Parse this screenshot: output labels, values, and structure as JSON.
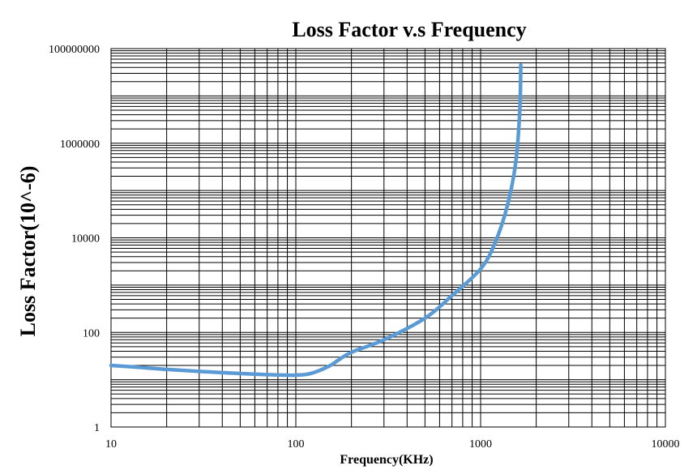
{
  "chart_data": {
    "type": "line",
    "title": "Loss Factor v.s Frequency",
    "xlabel": "Frequency(KHz)",
    "ylabel": "Loss Factor(10^-6)",
    "x_scale": "log",
    "y_scale": "log",
    "xlim": [
      10,
      10000
    ],
    "ylim": [
      1,
      100000000
    ],
    "x_ticks": [
      "10",
      "100",
      "1000",
      "10000"
    ],
    "y_ticks": [
      "1",
      "100",
      "10000",
      "1000000",
      "100000000"
    ],
    "grid": true,
    "legend": "none",
    "series": [
      {
        "color": "#5B9BD5",
        "x": [
          10,
          15,
          20,
          30,
          50,
          70,
          90,
          100,
          120,
          150,
          170,
          200,
          300,
          500,
          700,
          1000,
          1200,
          1400,
          1550,
          1630,
          1650
        ],
        "y": [
          20,
          18,
          16.5,
          15,
          13.5,
          12.8,
          12.5,
          12.5,
          13.5,
          19,
          26,
          38,
          70,
          200,
          600,
          2200,
          8000,
          50000,
          400000,
          5000000,
          45000000
        ]
      }
    ]
  }
}
